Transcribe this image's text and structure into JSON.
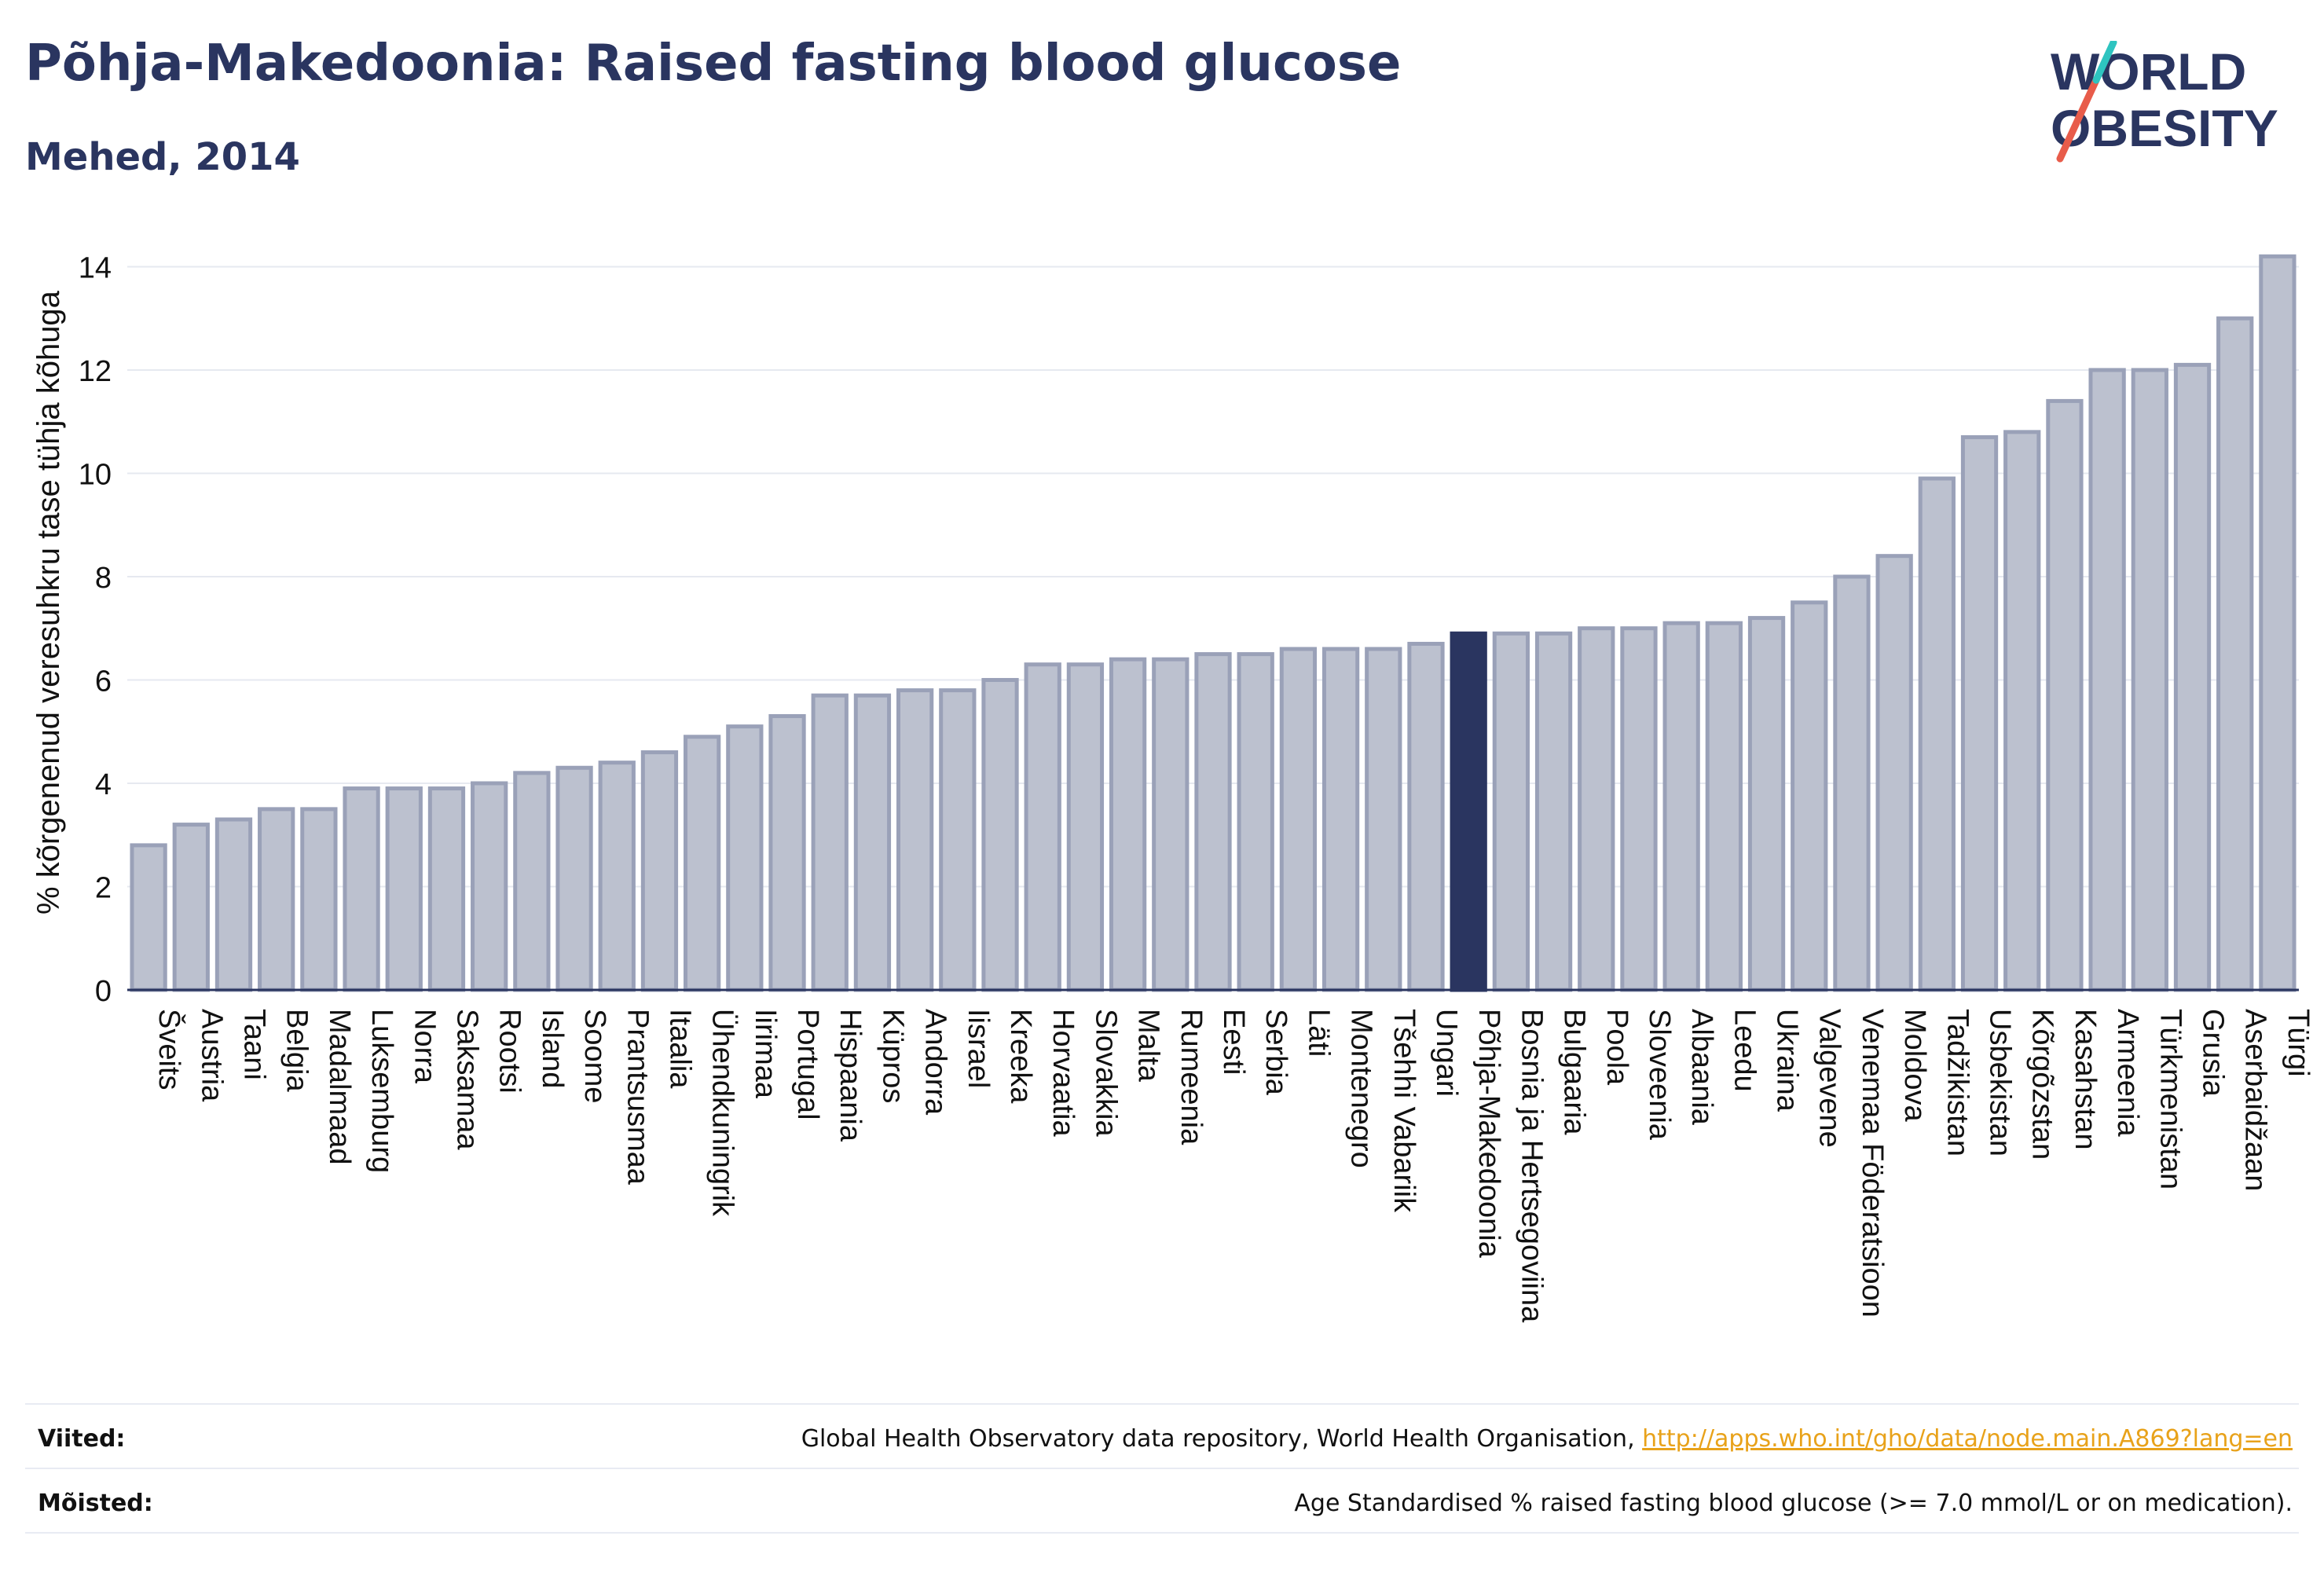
{
  "header": {
    "title": "Põhja-Makedoonia: Raised fasting blood glucose",
    "subtitle": "Mehed, 2014"
  },
  "logo": {
    "line1": "WORLD",
    "line2": "OBESITY"
  },
  "colors": {
    "bar": "#bcc1cf",
    "bar_edge": "#9aa1b8",
    "highlight": "#2a3560",
    "axis": "#2a3560",
    "grid": "#e6e9f0",
    "link": "#e8a21a"
  },
  "chart_data": {
    "type": "bar",
    "ylabel": "% kõrgenenud veresuhkru tase tühja kõhuga",
    "ylim": [
      0,
      14.6
    ],
    "yticks": [
      0,
      2,
      4,
      6,
      8,
      10,
      12,
      14
    ],
    "grid": true,
    "highlight": "Põhja-Makedoonia",
    "categories": [
      "Šveits",
      "Austria",
      "Taani",
      "Belgia",
      "Madalmaad",
      "Luksemburg",
      "Norra",
      "Saksamaa",
      "Rootsi",
      "Island",
      "Soome",
      "Prantsusmaa",
      "Itaalia",
      "Ühendkuningrik",
      "Iirimaa",
      "Portugal",
      "Hispaania",
      "Küpros",
      "Andorra",
      "Iisrael",
      "Kreeka",
      "Horvaatia",
      "Slovakkia",
      "Malta",
      "Rumeenia",
      "Eesti",
      "Serbia",
      "Läti",
      "Montenegro",
      "Tšehhi Vabariik",
      "Ungari",
      "Põhja-Makedoonia",
      "Bosnia ja Hertsegoviina",
      "Bulgaaria",
      "Poola",
      "Sloveenia",
      "Albaania",
      "Leedu",
      "Ukraina",
      "Valgevene",
      "Venemaa Föderatsioon",
      "Moldova",
      "Tadžikistan",
      "Usbekistan",
      "Kõrgõzstan",
      "Kasahstan",
      "Armeenia",
      "Türkmenistan",
      "Grusia",
      "Aserbaidžaan",
      "Türgi"
    ],
    "values": [
      2.8,
      3.2,
      3.3,
      3.5,
      3.5,
      3.9,
      3.9,
      3.9,
      4.0,
      4.2,
      4.3,
      4.4,
      4.6,
      4.9,
      5.1,
      5.3,
      5.7,
      5.7,
      5.8,
      5.8,
      6.0,
      6.3,
      6.3,
      6.4,
      6.4,
      6.5,
      6.5,
      6.6,
      6.6,
      6.6,
      6.7,
      6.9,
      6.9,
      6.9,
      7.0,
      7.0,
      7.1,
      7.1,
      7.2,
      7.5,
      8.0,
      8.4,
      9.9,
      10.7,
      10.8,
      11.4,
      12.0,
      12.0,
      12.1,
      13.0,
      14.2
    ]
  },
  "footer": {
    "sources_label": "Viited:",
    "sources_text": "Global Health Observatory data repository, World Health Organisation, ",
    "sources_link": "http://apps.who.int/gho/data/node.main.A869?lang=en",
    "definitions_label": "Mõisted:",
    "definitions_text": "Age Standardised % raised fasting blood glucose (>= 7.0 mmol/L or on medication)."
  }
}
